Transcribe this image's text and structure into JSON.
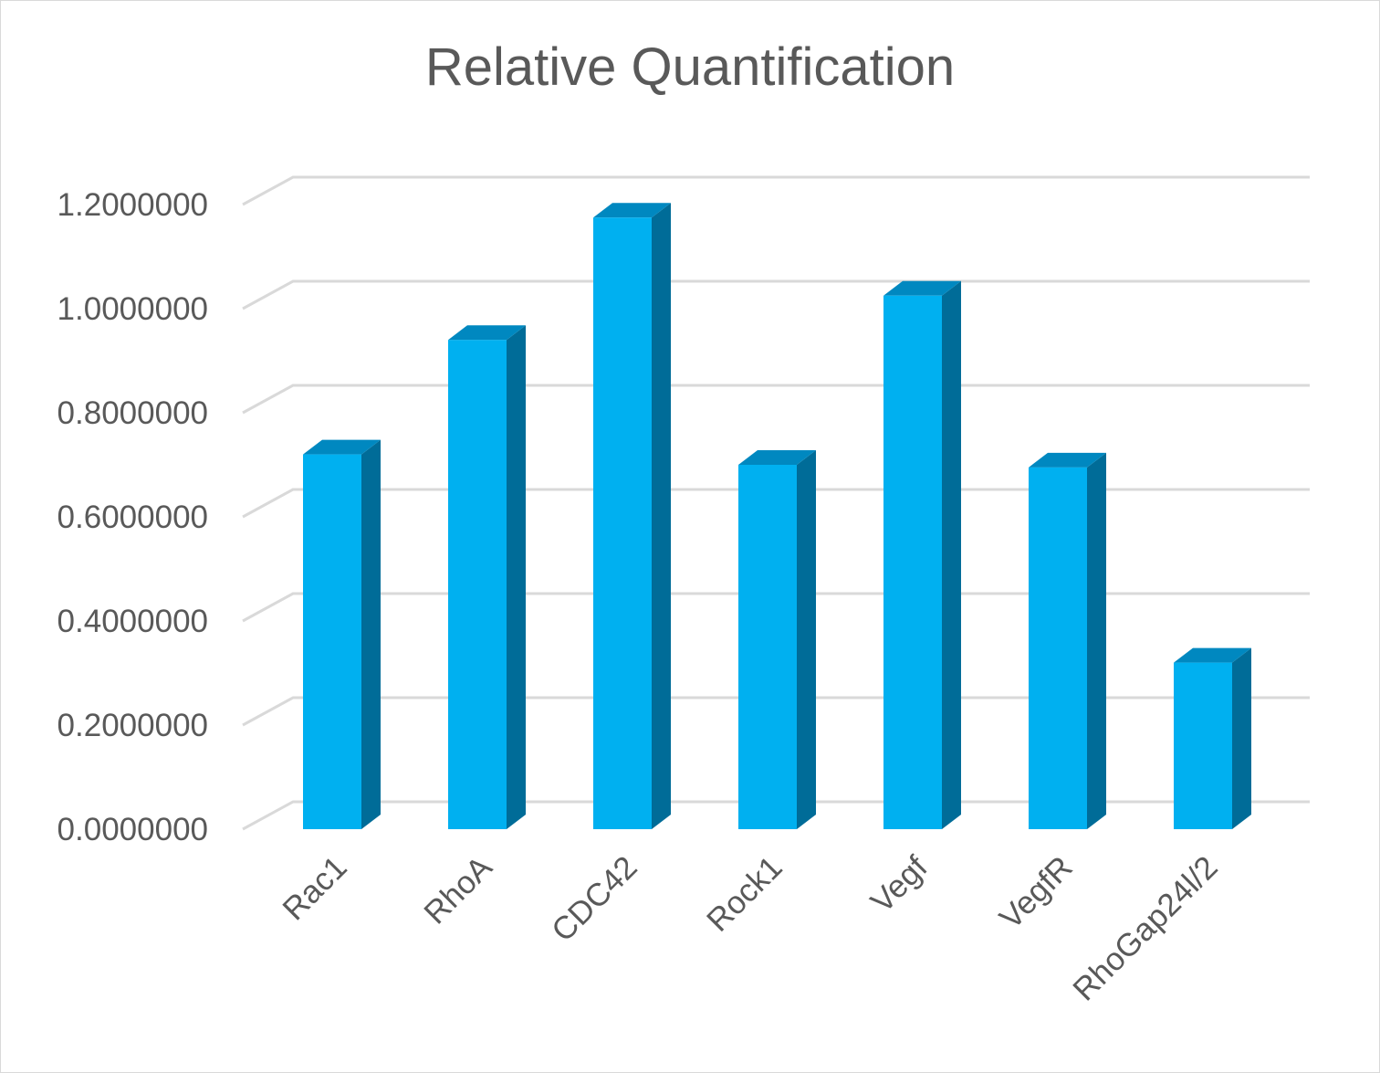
{
  "chart_data": {
    "type": "bar",
    "title": "Relative Quantification",
    "categories": [
      "Rac1",
      "RhoA",
      "CDC42",
      "Rock1",
      "Vegf",
      "VegfR",
      "RhoGap24l/2"
    ],
    "values": [
      0.72,
      0.94,
      1.175,
      0.7,
      1.025,
      0.695,
      0.32
    ],
    "ylim": [
      0,
      1.2
    ],
    "yticks": [
      "0.0000000",
      "0.2000000",
      "0.4000000",
      "0.6000000",
      "0.8000000",
      "1.0000000",
      "1.2000000"
    ],
    "xlabel": "",
    "ylabel": "",
    "grid": true,
    "three_d": true,
    "colors": {
      "front": "#00b0f0",
      "top": "#0088c0",
      "side": "#006c98",
      "grid": "#d9d9d9",
      "text": "#595959"
    }
  }
}
